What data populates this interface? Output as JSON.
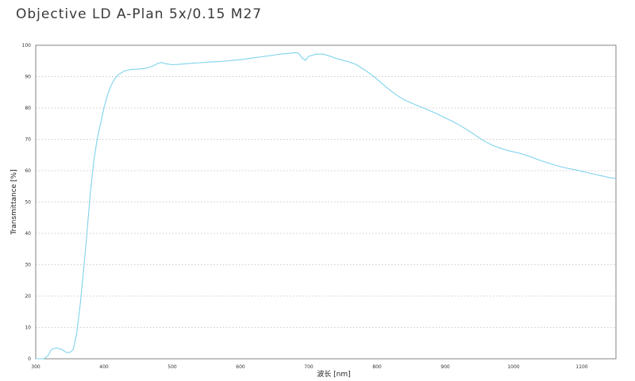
{
  "chart_data": {
    "type": "line",
    "title": "Objective LD A-Plan 5x/0.15 M27",
    "xlabel": "波长 [nm]",
    "ylabel": "Transmittance [%]",
    "xlim": [
      300,
      1150
    ],
    "ylim": [
      0,
      100
    ],
    "x_ticks": [
      300,
      400,
      500,
      600,
      700,
      800,
      900,
      1000,
      1100
    ],
    "y_ticks": [
      0,
      10,
      20,
      30,
      40,
      50,
      60,
      70,
      80,
      90,
      100
    ],
    "grid": "horizontal-dotted",
    "line_color": "#7fd3ec",
    "series": [
      {
        "x": [
          300,
          312,
          318,
          323,
          330,
          338,
          345,
          350,
          355,
          360,
          365,
          370,
          375,
          380,
          385,
          390,
          395,
          400,
          405,
          410,
          415,
          420,
          430,
          440,
          450,
          460,
          470,
          480,
          485,
          490,
          500,
          510,
          520,
          530,
          540,
          550,
          560,
          570,
          580,
          590,
          600,
          610,
          620,
          630,
          640,
          650,
          660,
          670,
          680,
          685,
          690,
          695,
          700,
          710,
          720,
          730,
          740,
          750,
          760,
          770,
          780,
          790,
          800,
          810,
          820,
          830,
          840,
          850,
          860,
          870,
          880,
          890,
          900,
          910,
          920,
          930,
          940,
          950,
          960,
          970,
          980,
          990,
          1000,
          1010,
          1020,
          1030,
          1040,
          1050,
          1060,
          1070,
          1080,
          1090,
          1100,
          1110,
          1120,
          1130,
          1140,
          1150
        ],
        "y": [
          0,
          0,
          1,
          3,
          3.5,
          3,
          2,
          2,
          3,
          8,
          17,
          28,
          40,
          53,
          63,
          70,
          75,
          80,
          84,
          87,
          89,
          90.5,
          91.8,
          92.3,
          92.4,
          92.6,
          93.2,
          94.3,
          94.5,
          94.1,
          93.8,
          93.9,
          94.1,
          94.3,
          94.4,
          94.6,
          94.7,
          94.8,
          95,
          95.2,
          95.4,
          95.7,
          96,
          96.3,
          96.6,
          96.9,
          97.2,
          97.4,
          97.6,
          97.5,
          96,
          95.2,
          96.5,
          97.1,
          97.2,
          96.6,
          95.8,
          95.2,
          94.6,
          93.8,
          92.4,
          90.9,
          89.2,
          87.3,
          85.5,
          83.9,
          82.6,
          81.6,
          80.7,
          79.8,
          78.9,
          77.9,
          76.8,
          75.8,
          74.6,
          73.3,
          71.9,
          70.4,
          69.1,
          68,
          67.2,
          66.5,
          66,
          65.5,
          64.8,
          64,
          63.2,
          62.5,
          61.8,
          61.2,
          60.7,
          60.3,
          59.8,
          59.3,
          58.8,
          58.3,
          57.8,
          57.5
        ]
      }
    ]
  }
}
